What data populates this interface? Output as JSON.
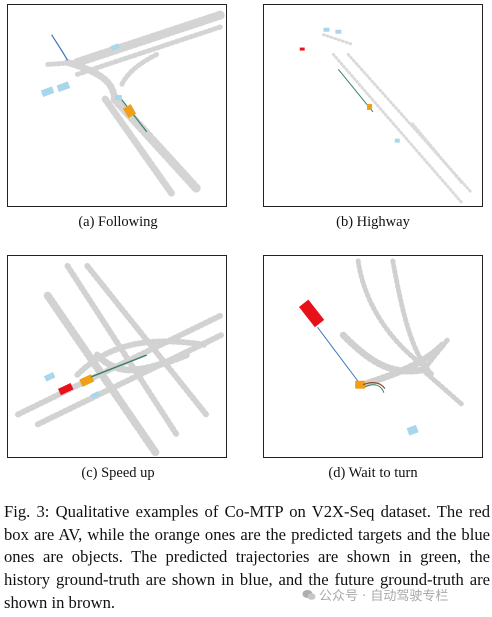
{
  "figure": {
    "subfigures": [
      {
        "label": "(a) Following"
      },
      {
        "label": "(b) Highway"
      },
      {
        "label": "(c) Speed up"
      },
      {
        "label": "(d) Wait to turn"
      }
    ],
    "caption": {
      "prefix": "Fig. 3:",
      "text": "Qualitative examples of Co-MTP on V2X-Seq dataset. The red box are AV, while the orange ones are the predicted targets and the blue ones are objects. The predicted trajectories are shown in green, the history ground-truth are shown in blue, and the future ground-truth are shown in brown."
    },
    "colors": {
      "av": "#e8111a",
      "target": "#f0a018",
      "object": "#a8d6ec",
      "predicted": "#3a7f66",
      "history": "#3f79b8",
      "future": "#8b4a2b",
      "map": "#d6d6d6"
    }
  },
  "watermark": {
    "icon": "wechat-icon",
    "text": "公众号 · 自动驾驶专栏"
  }
}
